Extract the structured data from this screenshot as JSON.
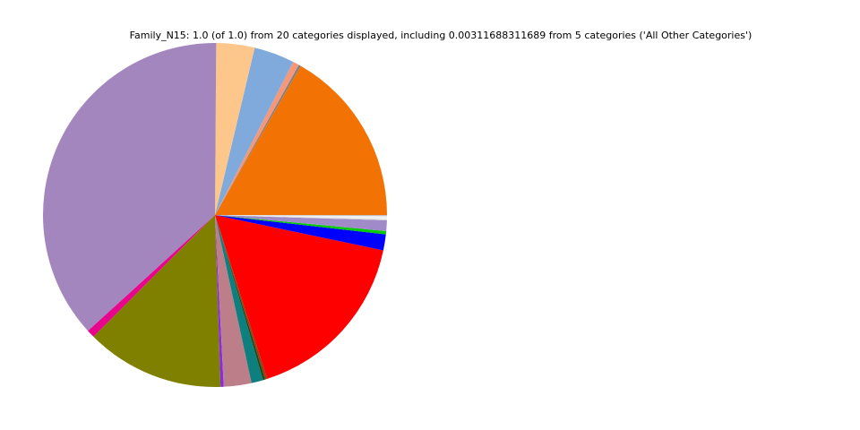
{
  "chart_data": {
    "type": "pie",
    "title": "Family_N15: 1.0 (of 1.0) from 20 categories displayed, including 0.00311688311689 from 5 categories ('All Other Categories')",
    "categories": [
      null,
      null,
      null,
      null,
      null,
      null,
      null,
      null,
      null,
      null,
      null,
      null,
      null,
      null,
      null,
      null,
      null,
      null,
      null,
      null
    ],
    "values": [
      0.167,
      0.002,
      0.006,
      0.038,
      0.036,
      0.369,
      0.0075,
      0.13,
      0.003,
      0.026,
      0.011,
      0.002,
      0.002,
      0.168,
      0.015,
      0.003,
      0.01,
      0.001,
      0.003,
      0.001
    ],
    "colors": [
      "#f27304",
      "#808080",
      "#f4977a",
      "#7faadb",
      "#fdc68a",
      "#a386be",
      "#e8068c",
      "#7f7f00",
      "#8a2be2",
      "#bc7f8a",
      "#0e7f7f",
      "#1a4a1a",
      "#8b4513",
      "#ff0000",
      "#0000ff",
      "#00cc00",
      "#a08ac8",
      "#d0d0d0",
      "#f0f0f0",
      "#c0c0c0"
    ],
    "start_angle": 0,
    "direction": "counterclockwise"
  }
}
